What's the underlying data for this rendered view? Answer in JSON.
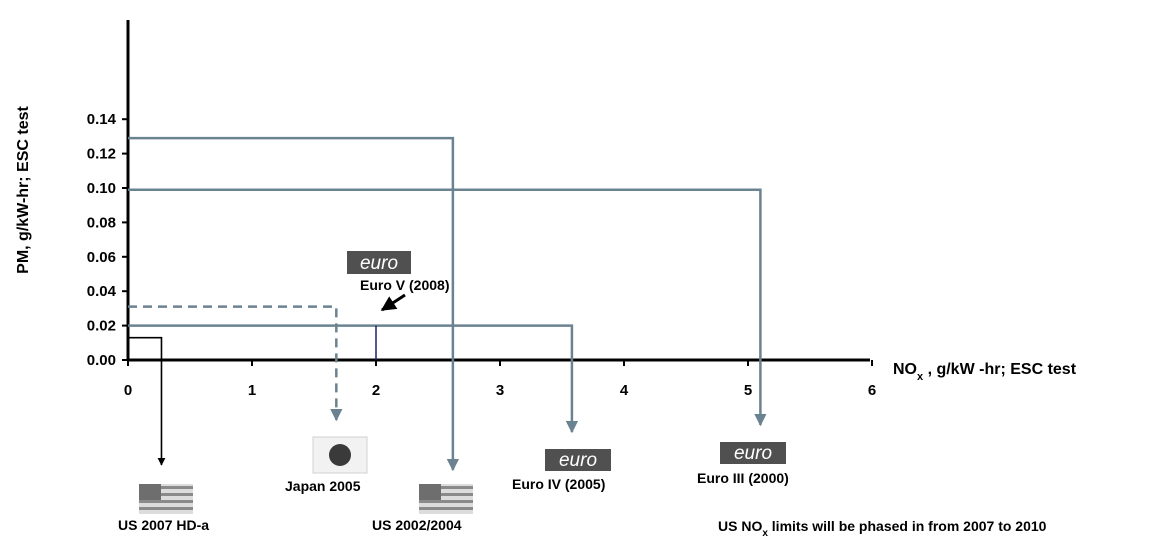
{
  "chart_data": {
    "type": "line",
    "xlabel": "NO",
    "xlabel_sub": "x",
    "xlabel_rest": " , g/kW  -hr; ESC test",
    "ylabel": "PM,  g/kW-hr;  ESC test",
    "xlim": [
      0,
      6
    ],
    "ylim": [
      0,
      0.14
    ],
    "x_ticks": [
      "0",
      "1",
      "2",
      "3",
      "4",
      "5",
      "6"
    ],
    "y_ticks": [
      "0.00",
      "0.02",
      "0.04",
      "0.06",
      "0.08",
      "0.10",
      "0.12",
      "0.14"
    ],
    "grid": false,
    "series": [
      {
        "name": "US 2007 HD-a",
        "nox": 0.27,
        "pm": 0.013,
        "color": "#000000",
        "dashed": false
      },
      {
        "name": "Japan 2005",
        "nox": 1.68,
        "pm": 0.031,
        "color": "#6b8390",
        "dashed": true
      },
      {
        "name": "US 2002/2004",
        "nox": 2.62,
        "pm": 0.129,
        "color": "#6b8390",
        "dashed": false
      },
      {
        "name": "Euro IV (2005)",
        "nox": 3.58,
        "pm": 0.02,
        "color": "#6b8390",
        "dashed": false
      },
      {
        "name": "Euro III (2000)",
        "nox": 5.1,
        "pm": 0.099,
        "color": "#6b8390",
        "dashed": false
      },
      {
        "name": "Euro V (2008)",
        "nox": 2.0,
        "pm": 0.02,
        "color": "#1f1f6e",
        "dashed": false
      }
    ],
    "euro_logo_text": "euro",
    "footnote": {
      "prefix": "US NO",
      "sub": "x",
      "suffix": " limits will be phased in from 2007 to 2010"
    }
  }
}
